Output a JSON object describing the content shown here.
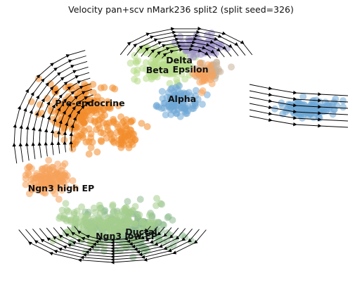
{
  "title": "Velocity pan+scv nMark236 split2 (split seed=326)",
  "chart_data": {
    "type": "scatter",
    "subtype": "rna-velocity-embedding-stream",
    "title": "Velocity pan+scv nMark236 split2 (split seed=326)",
    "xlabel": "",
    "ylabel": "",
    "axes_visible": false,
    "grid": false,
    "legend": "none (cluster labels on data)",
    "clusters": [
      {
        "name": "Ductal",
        "color": "#8fbc8f",
        "label": "Ductal"
      },
      {
        "name": "Ngn3 low EP",
        "color": "#a6ce8e",
        "label": "Ngn3 low EP"
      },
      {
        "name": "Ngn3 high EP",
        "color": "#f6a35b",
        "label": "Ngn3 high EP"
      },
      {
        "name": "Pre-endocrine",
        "color": "#f28d2c",
        "label": "Pre-endocrine"
      },
      {
        "name": "Beta",
        "color": "#b8dd8a",
        "label": "Beta"
      },
      {
        "name": "Alpha",
        "color": "#6fa8d6",
        "label": "Alpha"
      },
      {
        "name": "Delta",
        "color": "#9b8fc7",
        "label": "Delta"
      },
      {
        "name": "Epsilon",
        "color": "#c8b39a",
        "label": "Epsilon"
      }
    ]
  }
}
